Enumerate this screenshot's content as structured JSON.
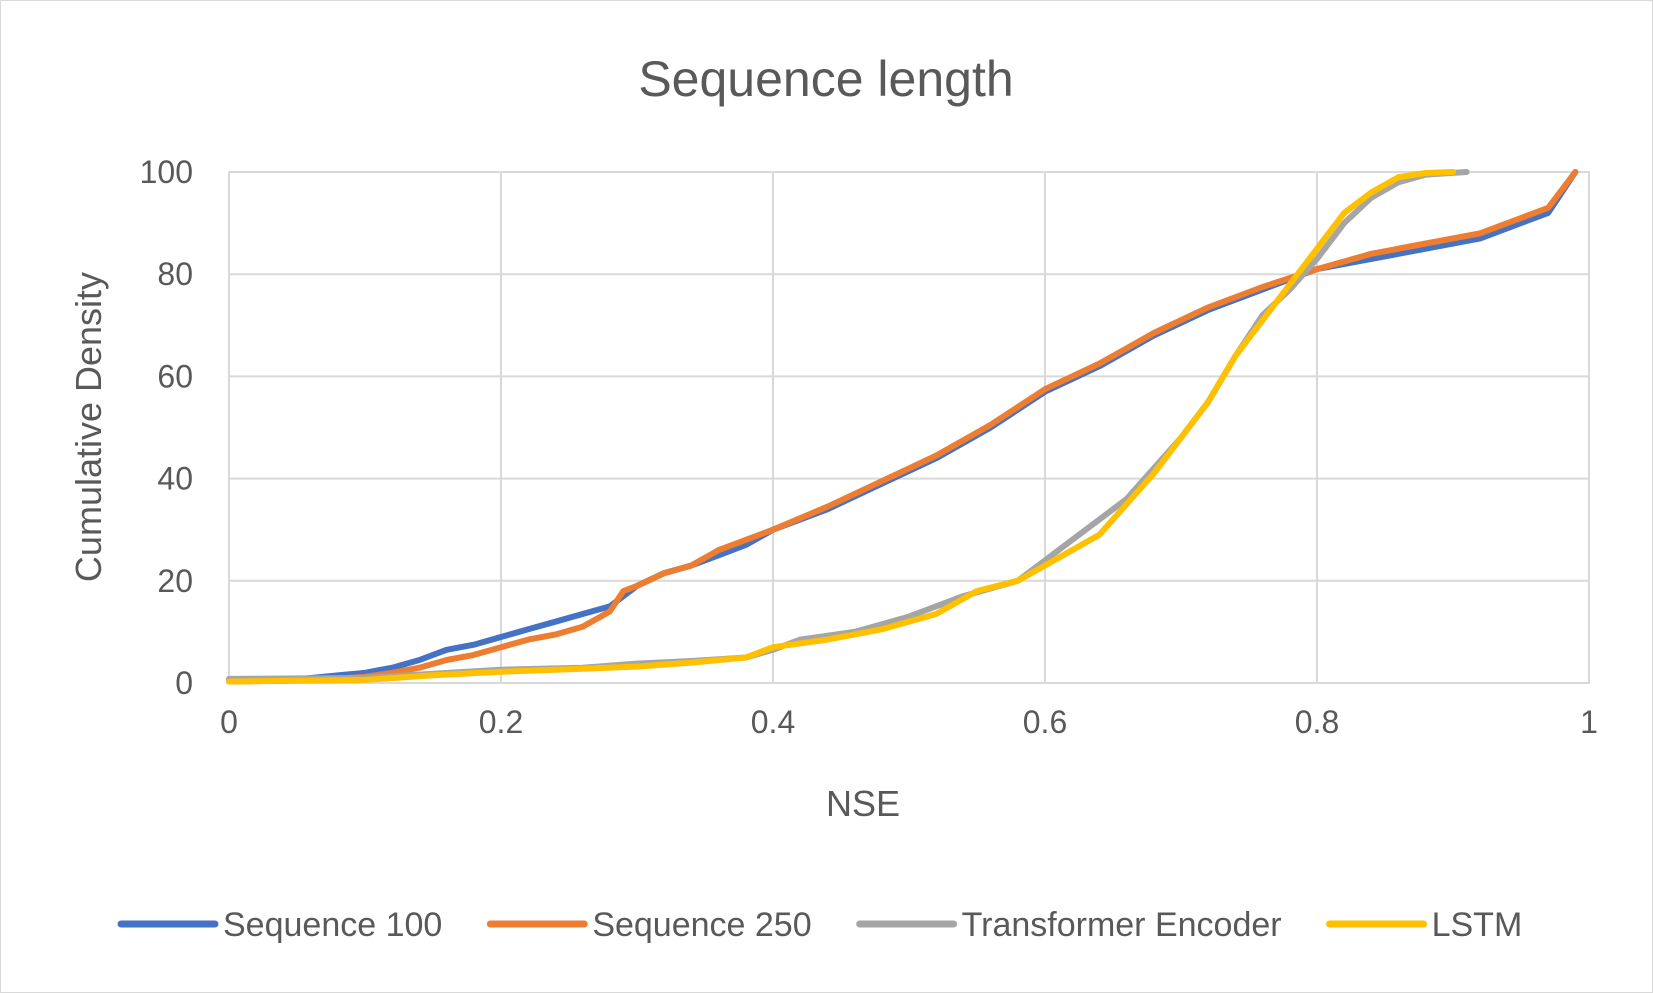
{
  "chart_data": {
    "type": "line",
    "title": "Sequence length",
    "xlabel": "NSE",
    "ylabel": "Cumulative Density",
    "xlim": [
      0,
      1
    ],
    "ylim": [
      0,
      100
    ],
    "x_ticks": [
      "0",
      "0.2",
      "0.4",
      "0.6",
      "0.8",
      "1"
    ],
    "y_ticks": [
      "0",
      "20",
      "40",
      "60",
      "80",
      "100"
    ],
    "grid": true,
    "legend_position": "bottom",
    "series": [
      {
        "name": "Sequence 100",
        "color": "#4472c4",
        "points": [
          [
            0,
            0.5
          ],
          [
            0.05,
            0.7
          ],
          [
            0.08,
            1.5
          ],
          [
            0.1,
            2
          ],
          [
            0.12,
            3
          ],
          [
            0.14,
            4.5
          ],
          [
            0.16,
            6.5
          ],
          [
            0.18,
            7.5
          ],
          [
            0.2,
            9
          ],
          [
            0.22,
            10.5
          ],
          [
            0.24,
            12
          ],
          [
            0.26,
            13.5
          ],
          [
            0.28,
            15
          ],
          [
            0.3,
            19
          ],
          [
            0.32,
            21.5
          ],
          [
            0.34,
            23
          ],
          [
            0.36,
            25
          ],
          [
            0.38,
            27
          ],
          [
            0.4,
            30
          ],
          [
            0.44,
            34
          ],
          [
            0.48,
            39
          ],
          [
            0.52,
            44
          ],
          [
            0.56,
            50
          ],
          [
            0.6,
            57
          ],
          [
            0.64,
            62
          ],
          [
            0.68,
            68
          ],
          [
            0.72,
            73
          ],
          [
            0.76,
            77
          ],
          [
            0.8,
            81
          ],
          [
            0.84,
            83
          ],
          [
            0.88,
            85
          ],
          [
            0.92,
            87
          ],
          [
            0.95,
            90
          ],
          [
            0.97,
            92
          ],
          [
            0.99,
            100
          ]
        ]
      },
      {
        "name": "Sequence 250",
        "color": "#ed7d31",
        "points": [
          [
            0,
            0.3
          ],
          [
            0.06,
            0.5
          ],
          [
            0.1,
            1.2
          ],
          [
            0.12,
            2
          ],
          [
            0.14,
            3
          ],
          [
            0.16,
            4.5
          ],
          [
            0.18,
            5.5
          ],
          [
            0.2,
            7
          ],
          [
            0.22,
            8.5
          ],
          [
            0.24,
            9.5
          ],
          [
            0.26,
            11
          ],
          [
            0.28,
            14
          ],
          [
            0.29,
            18
          ],
          [
            0.3,
            19
          ],
          [
            0.32,
            21.5
          ],
          [
            0.34,
            23
          ],
          [
            0.36,
            26
          ],
          [
            0.38,
            28
          ],
          [
            0.4,
            30
          ],
          [
            0.44,
            34.5
          ],
          [
            0.48,
            39.5
          ],
          [
            0.52,
            44.5
          ],
          [
            0.56,
            50.5
          ],
          [
            0.6,
            57.5
          ],
          [
            0.64,
            62.5
          ],
          [
            0.68,
            68.5
          ],
          [
            0.72,
            73.5
          ],
          [
            0.76,
            77.5
          ],
          [
            0.8,
            81
          ],
          [
            0.84,
            84
          ],
          [
            0.88,
            86
          ],
          [
            0.92,
            88
          ],
          [
            0.95,
            91
          ],
          [
            0.97,
            93
          ],
          [
            0.99,
            100
          ]
        ]
      },
      {
        "name": "Transformer Encoder",
        "color": "#a5a5a5",
        "points": [
          [
            0,
            0.8
          ],
          [
            0.1,
            1
          ],
          [
            0.15,
            1.8
          ],
          [
            0.2,
            2.6
          ],
          [
            0.26,
            3
          ],
          [
            0.3,
            3.8
          ],
          [
            0.34,
            4.3
          ],
          [
            0.38,
            5
          ],
          [
            0.4,
            6.5
          ],
          [
            0.42,
            8.5
          ],
          [
            0.46,
            10
          ],
          [
            0.5,
            13
          ],
          [
            0.54,
            17
          ],
          [
            0.58,
            20
          ],
          [
            0.6,
            24
          ],
          [
            0.62,
            28
          ],
          [
            0.64,
            32
          ],
          [
            0.66,
            36
          ],
          [
            0.68,
            42
          ],
          [
            0.7,
            48
          ],
          [
            0.72,
            55
          ],
          [
            0.74,
            64
          ],
          [
            0.76,
            72
          ],
          [
            0.78,
            77
          ],
          [
            0.8,
            83
          ],
          [
            0.82,
            90
          ],
          [
            0.84,
            95
          ],
          [
            0.86,
            98
          ],
          [
            0.88,
            99.5
          ],
          [
            0.91,
            100
          ]
        ]
      },
      {
        "name": "LSTM",
        "color": "#ffc000",
        "points": [
          [
            0,
            0.3
          ],
          [
            0.1,
            0.6
          ],
          [
            0.15,
            1.5
          ],
          [
            0.2,
            2.2
          ],
          [
            0.26,
            2.8
          ],
          [
            0.3,
            3.2
          ],
          [
            0.34,
            4
          ],
          [
            0.38,
            5
          ],
          [
            0.4,
            7
          ],
          [
            0.44,
            8.5
          ],
          [
            0.48,
            10.5
          ],
          [
            0.52,
            13.5
          ],
          [
            0.55,
            18
          ],
          [
            0.58,
            20
          ],
          [
            0.6,
            23
          ],
          [
            0.62,
            26
          ],
          [
            0.64,
            29
          ],
          [
            0.66,
            35
          ],
          [
            0.68,
            41
          ],
          [
            0.7,
            48
          ],
          [
            0.72,
            55
          ],
          [
            0.74,
            64
          ],
          [
            0.76,
            71
          ],
          [
            0.78,
            78
          ],
          [
            0.8,
            85
          ],
          [
            0.82,
            92
          ],
          [
            0.84,
            96
          ],
          [
            0.86,
            99
          ],
          [
            0.88,
            99.8
          ],
          [
            0.9,
            100
          ]
        ]
      }
    ]
  }
}
